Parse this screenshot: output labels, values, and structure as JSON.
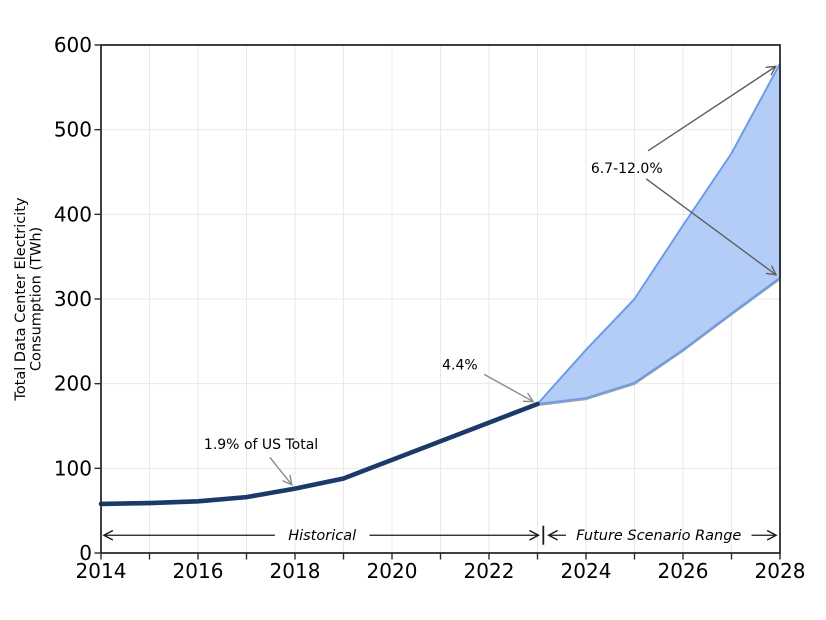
{
  "chart_data": {
    "type": "line",
    "title": "",
    "xlabel": "",
    "ylabel_lines": [
      "Total Data Center Electricity",
      "Consumption (TWh)"
    ],
    "xlim": [
      2014,
      2028
    ],
    "ylim": [
      0,
      600
    ],
    "x_major_ticks": [
      2014,
      2016,
      2018,
      2020,
      2022,
      2024,
      2026,
      2028
    ],
    "x_all_tick_years": [
      2014,
      2015,
      2016,
      2017,
      2018,
      2019,
      2020,
      2021,
      2022,
      2023,
      2024,
      2025,
      2026,
      2027,
      2028
    ],
    "y_ticks": [
      0,
      100,
      200,
      300,
      400,
      500,
      600
    ],
    "grid": true,
    "legend": "none",
    "series": [
      {
        "name": "Historical",
        "role": "historical",
        "x": [
          2014,
          2015,
          2016,
          2017,
          2018,
          2019,
          2020,
          2021,
          2022,
          2023
        ],
        "values": [
          58,
          59,
          61,
          66,
          76,
          88,
          110,
          132,
          154,
          176
        ]
      },
      {
        "name": "Future scenario low",
        "role": "scenario_low",
        "x": [
          2023,
          2024,
          2025,
          2026,
          2027,
          2028
        ],
        "values": [
          176,
          183,
          201,
          240,
          283,
          325
        ]
      },
      {
        "name": "Future scenario high",
        "role": "scenario_high",
        "x": [
          2023,
          2024,
          2025,
          2026,
          2027,
          2028
        ],
        "values": [
          176,
          240,
          300,
          387,
          472,
          578
        ]
      }
    ],
    "annotations": [
      {
        "id": "share-2018",
        "text": "1.9% of US Total",
        "x": 2017.3,
        "y": 123,
        "arrow_color_key": "short_arrow",
        "arrows": [
          {
            "from": [
              2017.48,
              113
            ],
            "to": [
              2018,
              76
            ]
          }
        ]
      },
      {
        "id": "share-2023",
        "text": "4.4%",
        "x": 2021.4,
        "y": 217,
        "arrow_color_key": "short_arrow",
        "arrows": [
          {
            "from": [
              2021.9,
              211
            ],
            "to": [
              2023,
              176
            ]
          }
        ]
      },
      {
        "id": "share-2028-range",
        "text": "6.7-12.0%",
        "x": 2024.84,
        "y": 449,
        "arrow_color_key": "long_arrow",
        "arrows": [
          {
            "from": [
              2025.28,
              475
            ],
            "to": [
              2028,
              578
            ]
          },
          {
            "from": [
              2025.24,
              442
            ],
            "to": [
              2028,
              325
            ]
          }
        ]
      }
    ],
    "range_labels": [
      {
        "text": "Historical",
        "x_from": 2014.06,
        "x_to": 2023.02,
        "x_center": 2018.56,
        "y": 21
      },
      {
        "text": "Future Scenario Range",
        "x_from": 2023.23,
        "x_to": 2027.92,
        "x_center": 2025.5,
        "y": 21
      }
    ],
    "range_separator": {
      "x": 2023.12,
      "y": 21
    },
    "colors": {
      "historical_line": "#1b3a6a",
      "band_fill": "#b3cdf6",
      "band_edge": "#6d9ce8",
      "band_lower_shadow": "#9f9f9f",
      "grid": "#e9e9e9",
      "spine": "#2b2b2b",
      "tick": "#2b2b2b",
      "tick_label": "#000000",
      "annotation_text": "#000000",
      "short_arrow": "#8a8a8a",
      "long_arrow": "#5f5f5f",
      "range_arrow": "#1a1a1a"
    }
  }
}
